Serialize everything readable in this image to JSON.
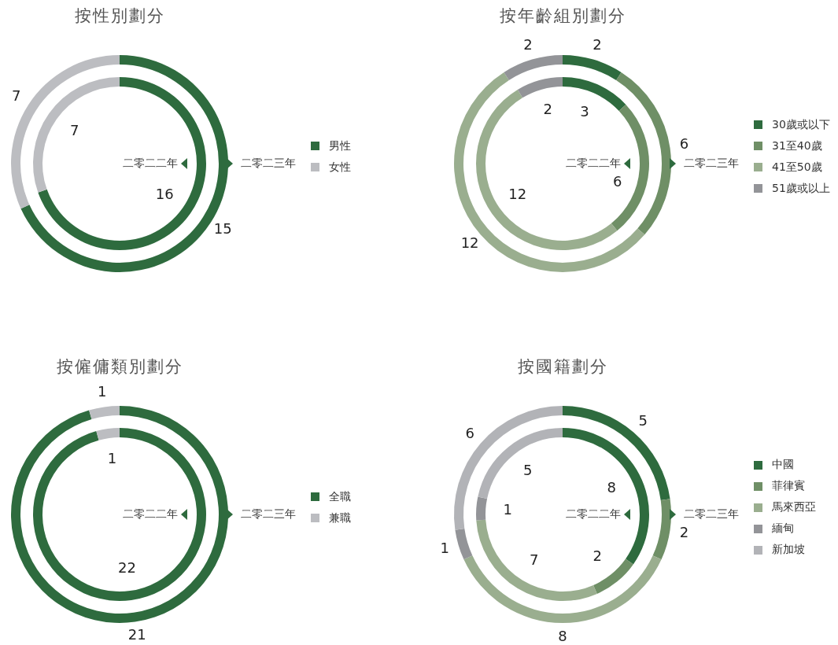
{
  "chart_data": [
    {
      "type": "donut",
      "title": "按性別劃分",
      "categories": [
        "男性",
        "女性"
      ],
      "colors": [
        "#2e6b3e",
        "#bcbdc1"
      ],
      "data_labels": true,
      "legend": "right",
      "series": [
        {
          "name": "二零二二年",
          "values": [
            16,
            7
          ]
        },
        {
          "name": "二零二三年",
          "values": [
            15,
            7
          ]
        }
      ]
    },
    {
      "type": "donut",
      "title": "按年齡組別劃分",
      "categories": [
        "30歲或以下",
        "31至40歲",
        "41至50歲",
        "51歲或以上"
      ],
      "colors": [
        "#2e6b3e",
        "#6f8f66",
        "#9aae8f",
        "#939498"
      ],
      "data_labels": true,
      "legend": "right",
      "series": [
        {
          "name": "二零二二年",
          "values": [
            3,
            6,
            12,
            2
          ]
        },
        {
          "name": "二零二三年",
          "values": [
            2,
            6,
            12,
            2
          ]
        }
      ]
    },
    {
      "type": "donut",
      "title": "按僱傭類別劃分",
      "categories": [
        "全職",
        "兼職"
      ],
      "colors": [
        "#2e6b3e",
        "#bcbdc1"
      ],
      "data_labels": true,
      "legend": "right",
      "series": [
        {
          "name": "二零二二年",
          "values": [
            22,
            1
          ]
        },
        {
          "name": "二零二三年",
          "values": [
            21,
            1
          ]
        }
      ]
    },
    {
      "type": "donut",
      "title": "按國籍劃分",
      "categories": [
        "中國",
        "菲律賓",
        "馬來西亞",
        "緬甸",
        "新加坡"
      ],
      "colors": [
        "#2e6b3e",
        "#6f8f66",
        "#9aae8f",
        "#939498",
        "#b2b3b7"
      ],
      "data_labels": true,
      "legend": "right",
      "series": [
        {
          "name": "二零二二年",
          "values": [
            8,
            2,
            7,
            1,
            5
          ]
        },
        {
          "name": "二零二三年",
          "values": [
            5,
            2,
            8,
            1,
            6
          ]
        }
      ]
    }
  ]
}
